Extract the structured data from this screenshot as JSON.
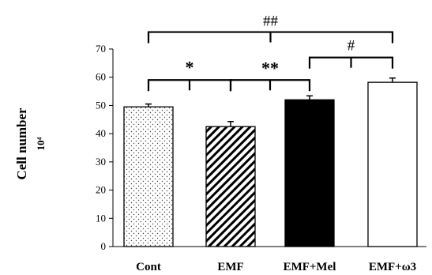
{
  "chart_data": {
    "type": "bar",
    "ylabel": "Cell number",
    "ylabel_unit": "10⁴",
    "ylim": [
      0,
      70
    ],
    "yticks": [
      "0",
      "10",
      "20",
      "30",
      "40",
      "50",
      "60",
      "70"
    ],
    "categories": [
      "Cont",
      "EMF",
      "EMF+Mel",
      "EMF+ω3"
    ],
    "values": [
      49.5,
      42.5,
      52,
      58.2
    ],
    "errors": [
      1.0,
      1.8,
      1.4,
      1.5
    ],
    "fills": [
      "dotted",
      "diagonal-hatch",
      "solid-black",
      "white"
    ],
    "significance": [
      {
        "from": 0,
        "to": 1,
        "label": "*"
      },
      {
        "from": 1,
        "to": 2,
        "label": "**"
      },
      {
        "from": 2,
        "to": 3,
        "label": "#"
      },
      {
        "from": 0,
        "to": 3,
        "label": "##"
      }
    ],
    "grid": false,
    "legend": "none"
  }
}
